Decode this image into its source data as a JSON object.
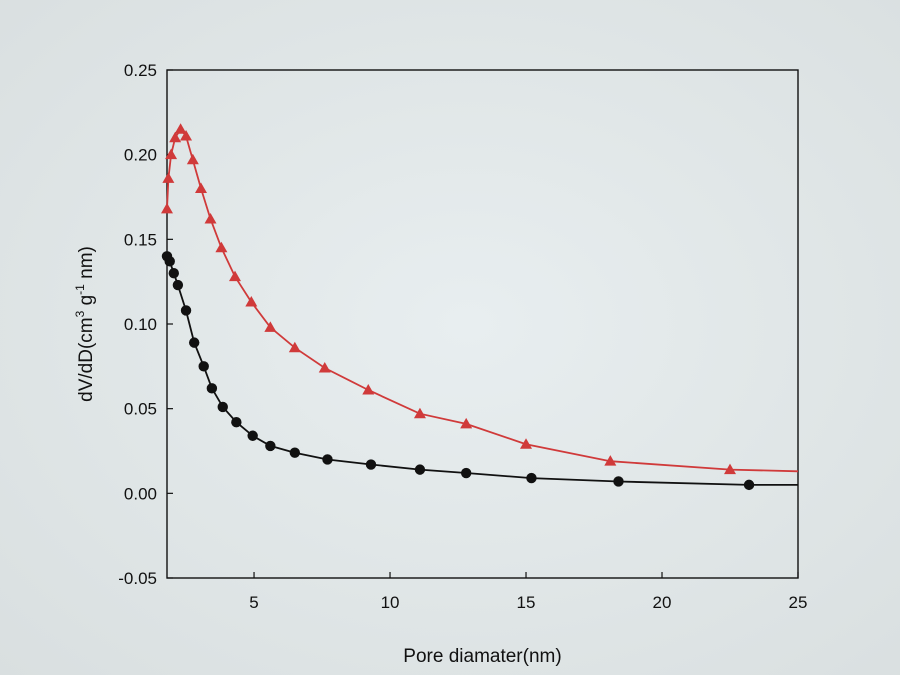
{
  "chart_data": {
    "type": "line",
    "title": "",
    "xlabel": "Pore diamater(nm)",
    "ylabel": {
      "prefix": "dV/dD(cm",
      "sup1": "3",
      "middle": " g",
      "sup2": "-1",
      "suffix": " nm)"
    },
    "xlim": [
      1.8,
      25
    ],
    "ylim": [
      -0.05,
      0.25
    ],
    "xticks": [
      5,
      10,
      15,
      20,
      25
    ],
    "xtick_labels": [
      "5",
      "10",
      "15",
      "20",
      "25"
    ],
    "yticks": [
      -0.05,
      0.0,
      0.05,
      0.1,
      0.15,
      0.2,
      0.25
    ],
    "ytick_labels": [
      "-0.05",
      "0.00",
      "0.05",
      "0.10",
      "0.15",
      "0.20",
      "0.25"
    ],
    "grid": false,
    "legend": "none",
    "series": [
      {
        "color": "#d03a3a",
        "marker": "triangle",
        "x": [
          1.8,
          1.85,
          1.95,
          2.1,
          2.3,
          2.5,
          2.75,
          3.05,
          3.4,
          3.8,
          4.3,
          4.9,
          5.6,
          6.5,
          7.6,
          9.2,
          11.1,
          12.8,
          15.0,
          18.1,
          22.5,
          25.0
        ],
        "y": [
          0.168,
          0.186,
          0.2,
          0.21,
          0.215,
          0.211,
          0.197,
          0.18,
          0.162,
          0.145,
          0.128,
          0.113,
          0.098,
          0.086,
          0.074,
          0.061,
          0.047,
          0.041,
          0.029,
          0.019,
          0.014,
          0.013
        ]
      },
      {
        "color": "#111111",
        "marker": "circle",
        "x": [
          1.8,
          1.9,
          2.05,
          2.2,
          2.5,
          2.8,
          3.15,
          3.45,
          3.85,
          4.35,
          4.95,
          5.6,
          6.5,
          7.7,
          9.3,
          11.1,
          12.8,
          15.2,
          18.4,
          23.2,
          25.0
        ],
        "y": [
          0.14,
          0.137,
          0.13,
          0.123,
          0.108,
          0.089,
          0.075,
          0.062,
          0.051,
          0.042,
          0.034,
          0.028,
          0.024,
          0.02,
          0.017,
          0.014,
          0.012,
          0.009,
          0.007,
          0.005,
          0.005
        ]
      }
    ]
  }
}
